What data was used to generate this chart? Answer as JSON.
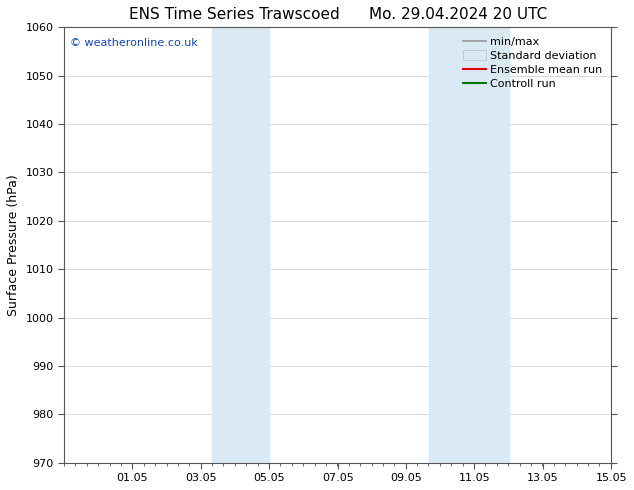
{
  "title_left": "ENS Time Series Trawscoed",
  "title_right": "Mo. 29.04.2024 20 UTC",
  "ylabel": "Surface Pressure (hPa)",
  "ylim": [
    970,
    1060
  ],
  "yticks": [
    970,
    980,
    990,
    1000,
    1010,
    1020,
    1030,
    1040,
    1050,
    1060
  ],
  "xlim": [
    0,
    16
  ],
  "xtick_labels": [
    "01.05",
    "03.05",
    "05.05",
    "07.05",
    "09.05",
    "11.05",
    "13.05",
    "15.05"
  ],
  "xtick_positions": [
    2,
    4,
    6,
    8,
    10,
    12,
    14,
    16
  ],
  "shaded_regions": [
    {
      "start": 4.33,
      "end": 6.0
    },
    {
      "start": 10.67,
      "end": 13.0
    }
  ],
  "shaded_color": "#daeaf5",
  "watermark_text": "© weatheronline.co.uk",
  "watermark_color": "#1144bb",
  "legend_items": [
    {
      "label": "min/max",
      "color": "#999999",
      "type": "hline"
    },
    {
      "label": "Standard deviation",
      "color": "#ccddee",
      "type": "band"
    },
    {
      "label": "Ensemble mean run",
      "color": "#dd0000",
      "type": "line"
    },
    {
      "label": "Controll run",
      "color": "#007700",
      "type": "line"
    }
  ],
  "bg_color": "#ffffff",
  "grid_color": "#cccccc",
  "title_fontsize": 11,
  "label_fontsize": 9,
  "tick_fontsize": 8,
  "legend_fontsize": 8,
  "watermark_fontsize": 8
}
